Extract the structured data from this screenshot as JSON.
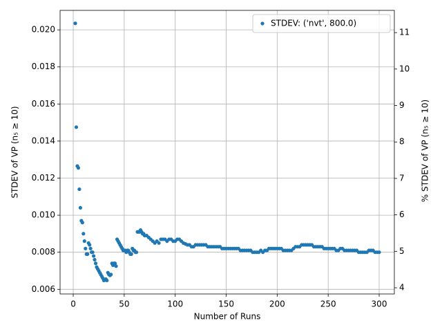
{
  "chart_data": {
    "type": "scatter",
    "x_label": "Number of Runs",
    "y_label": "STDEV of VP (n₅ ≥ 10)",
    "y2_label": "% STDEV of VP (n₅ ≥ 10)",
    "xlim": [
      -12.9,
      314.9
    ],
    "xticks": [
      0,
      50,
      100,
      150,
      200,
      250,
      300
    ],
    "ylim": [
      0.00575,
      0.02105
    ],
    "yticks": [
      0.006,
      0.008,
      {
        "value": 0.01,
        "label": "0.010"
      },
      0.012,
      0.014,
      0.016,
      0.018,
      {
        "value": 0.02,
        "label": "0.020"
      }
    ],
    "y2lim": [
      3.83,
      11.61
    ],
    "y2ticks": [
      4,
      5,
      6,
      7,
      8,
      9,
      10,
      11
    ],
    "grid": true,
    "legend": "upper right",
    "series": [
      {
        "name": "STDEV: ('nvt', 800.0)",
        "color": "#1f77b4",
        "x": [
          2,
          3,
          4,
          5,
          6,
          7,
          8,
          9,
          10,
          11,
          12,
          13,
          14,
          15,
          16,
          17,
          18,
          19,
          20,
          21,
          22,
          23,
          24,
          25,
          26,
          27,
          28,
          29,
          30,
          31,
          32,
          33,
          34,
          35,
          36,
          37,
          38,
          39,
          40,
          41,
          42,
          43,
          44,
          45,
          46,
          47,
          48,
          49,
          50,
          51,
          52,
          53,
          54,
          55,
          56,
          57,
          58,
          59,
          60,
          61,
          62,
          63,
          64,
          65,
          66,
          67,
          68,
          69,
          70,
          72,
          74,
          76,
          78,
          80,
          82,
          84,
          86,
          88,
          90,
          92,
          94,
          96,
          98,
          100,
          102,
          104,
          106,
          108,
          110,
          112,
          114,
          116,
          118,
          120,
          122,
          124,
          126,
          128,
          130,
          132,
          134,
          136,
          138,
          140,
          142,
          144,
          146,
          148,
          150,
          152,
          154,
          156,
          158,
          160,
          162,
          164,
          166,
          168,
          170,
          172,
          174,
          176,
          178,
          180,
          182,
          184,
          186,
          188,
          190,
          192,
          194,
          196,
          198,
          200,
          202,
          204,
          206,
          208,
          210,
          212,
          214,
          216,
          218,
          220,
          222,
          224,
          226,
          228,
          230,
          232,
          234,
          236,
          238,
          240,
          242,
          244,
          246,
          248,
          250,
          252,
          254,
          256,
          258,
          260,
          262,
          264,
          266,
          268,
          270,
          272,
          274,
          276,
          278,
          280,
          282,
          284,
          286,
          288,
          290,
          292,
          294,
          296,
          298,
          300
        ],
        "values": [
          0.02035,
          0.01475,
          0.01265,
          0.01255,
          0.0114,
          0.0104,
          0.0097,
          0.0096,
          0.009,
          0.0086,
          0.0082,
          0.0079,
          0.0079,
          0.0085,
          0.0084,
          0.0082,
          0.008,
          0.008,
          0.0078,
          0.0076,
          0.0074,
          0.0072,
          0.0071,
          0.007,
          0.0069,
          0.0068,
          0.0067,
          0.0066,
          0.00648,
          0.0065,
          0.00655,
          0.00648,
          0.0069,
          0.0068,
          0.00675,
          0.0068,
          0.0074,
          0.0073,
          0.0074,
          0.0074,
          0.00725,
          0.0087,
          0.0086,
          0.0085,
          0.0084,
          0.0083,
          0.0082,
          0.0081,
          0.0081,
          0.0081,
          0.008,
          0.0081,
          0.0081,
          0.008,
          0.0079,
          0.0079,
          0.0082,
          0.0081,
          0.0081,
          0.008,
          0.008,
          0.0091,
          0.0091,
          0.0091,
          0.0092,
          0.0091,
          0.009,
          0.009,
          0.0089,
          0.0089,
          0.0088,
          0.0087,
          0.0086,
          0.0085,
          0.0086,
          0.0085,
          0.0087,
          0.0087,
          0.0087,
          0.0086,
          0.0087,
          0.0087,
          0.0086,
          0.0086,
          0.0087,
          0.0087,
          0.0086,
          0.0085,
          0.00845,
          0.0084,
          0.0084,
          0.0083,
          0.0083,
          0.0084,
          0.0084,
          0.0084,
          0.0084,
          0.0084,
          0.0084,
          0.0083,
          0.0083,
          0.0083,
          0.0083,
          0.0083,
          0.0083,
          0.0083,
          0.0082,
          0.0082,
          0.0082,
          0.0082,
          0.0082,
          0.0082,
          0.0082,
          0.0082,
          0.0082,
          0.0081,
          0.0081,
          0.0081,
          0.0081,
          0.0081,
          0.0081,
          0.008,
          0.008,
          0.008,
          0.008,
          0.0081,
          0.008,
          0.0081,
          0.0081,
          0.0082,
          0.0082,
          0.0082,
          0.0082,
          0.0082,
          0.0082,
          0.0082,
          0.0081,
          0.0081,
          0.0081,
          0.0081,
          0.0081,
          0.0082,
          0.0083,
          0.0083,
          0.0083,
          0.0084,
          0.0084,
          0.0084,
          0.0084,
          0.0084,
          0.0084,
          0.0083,
          0.0083,
          0.0083,
          0.0083,
          0.0083,
          0.0082,
          0.0082,
          0.0082,
          0.0082,
          0.0082,
          0.0082,
          0.0081,
          0.0081,
          0.0082,
          0.0082,
          0.0081,
          0.0081,
          0.0081,
          0.0081,
          0.0081,
          0.0081,
          0.0081,
          0.008,
          0.008,
          0.008,
          0.008,
          0.008,
          0.0081,
          0.0081,
          0.0081,
          0.008,
          0.008,
          0.008
        ]
      }
    ]
  }
}
